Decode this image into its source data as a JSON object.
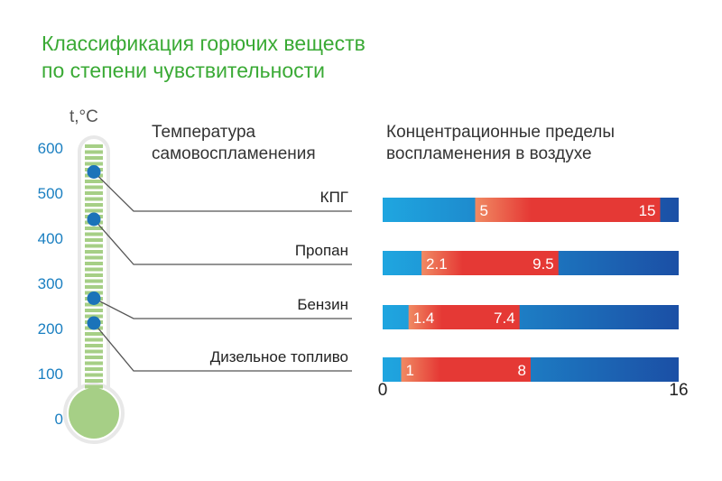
{
  "title": {
    "line1": "Классификация горючих веществ",
    "line2": "по степени чувствительности"
  },
  "colors": {
    "title": "#3aaa35",
    "axis_text": "#1a7fc1",
    "thermo_fill": "#a6cf86",
    "marker": "#1b73b9",
    "range": "#e53935",
    "bar_left": "#1fa6e0",
    "bar_right": "#1b4fa5"
  },
  "thermometer": {
    "unit_label": "t,°C",
    "ticks": [
      0,
      100,
      200,
      300,
      400,
      500,
      600
    ],
    "ylim": [
      0,
      600
    ]
  },
  "headers": {
    "left_line1": "Температура",
    "left_line2": "самовоспламенения",
    "right_line1": "Концентрационные пределы",
    "right_line2": "воспламенения в воздухе"
  },
  "chart_data": {
    "type": "bar",
    "xlim": [
      0,
      16
    ],
    "x_ticks": [
      "0",
      "16"
    ],
    "categories": [
      "КПГ",
      "Пропан",
      "Бензин",
      "Дизельное топливо"
    ],
    "autoignition_temp_c": [
      545,
      440,
      265,
      210
    ],
    "lower_limit": [
      5,
      2.1,
      1.4,
      1
    ],
    "upper_limit": [
      15,
      9.5,
      7.4,
      8
    ],
    "lower_label": [
      "5",
      "2.1",
      "1.4",
      "1"
    ],
    "upper_label": [
      "15",
      "9.5",
      "7.4",
      "8"
    ]
  }
}
